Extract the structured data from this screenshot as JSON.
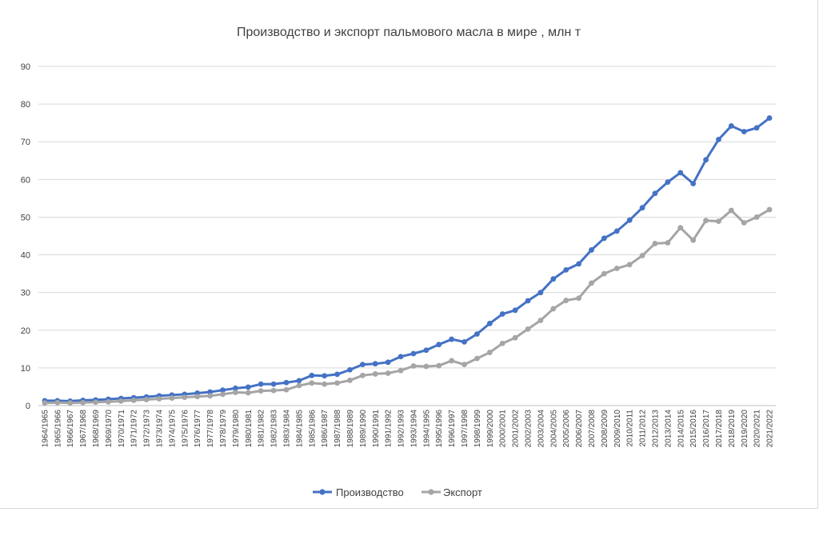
{
  "chart_data": {
    "type": "line",
    "title": "Производство и экспорт пальмового масла в мире , млн т",
    "xlabel": "",
    "ylabel": "",
    "ylim": [
      0,
      90
    ],
    "yticks": [
      0,
      10,
      20,
      30,
      40,
      50,
      60,
      70,
      80,
      90
    ],
    "grid": true,
    "legend": "bottom",
    "categories": [
      "1964/1965",
      "1965/1966",
      "1966/1967",
      "1967/1968",
      "1968/1969",
      "1969/1970",
      "1970/1971",
      "1971/1972",
      "1972/1973",
      "1973/1974",
      "1974/1975",
      "1975/1976",
      "1976/1977",
      "1977/1978",
      "1978/1979",
      "1979/1980",
      "1980/1981",
      "1981/1982",
      "1982/1983",
      "1983/1984",
      "1984/1985",
      "1985/1986",
      "1986/1987",
      "1987/1988",
      "1988/1989",
      "1989/1990",
      "1990/1991",
      "1991/1992",
      "1992/1993",
      "1993/1994",
      "1994/1995",
      "1995/1996",
      "1996/1997",
      "1997/1998",
      "1998/1999",
      "1999/2000",
      "2000/2001",
      "2001/2002",
      "2002/2003",
      "2003/2004",
      "2004/2005",
      "2005/2006",
      "2006/2007",
      "2007/2008",
      "2008/2009",
      "2009/2010",
      "2010/2011",
      "2011/2012",
      "2012/2013",
      "2013/2014",
      "2014/2015",
      "2015/2016",
      "2016/2017",
      "2017/2018",
      "2018/2019",
      "2019/2020",
      "2020/2021",
      "2021/2022"
    ],
    "series": [
      {
        "name": "Производство",
        "color": "#4472c4",
        "values": [
          1.3,
          1.3,
          1.2,
          1.4,
          1.5,
          1.7,
          1.9,
          2.1,
          2.3,
          2.6,
          2.8,
          3.0,
          3.3,
          3.6,
          4.1,
          4.6,
          4.9,
          5.7,
          5.7,
          6.1,
          6.6,
          8.0,
          7.9,
          8.3,
          9.5,
          10.9,
          11.1,
          11.5,
          13.0,
          13.8,
          14.7,
          16.2,
          17.6,
          16.9,
          19.0,
          21.8,
          24.3,
          25.3,
          27.8,
          30.0,
          33.6,
          36.0,
          37.6,
          41.3,
          44.4,
          46.3,
          49.2,
          52.5,
          56.3,
          59.3,
          61.8,
          58.9,
          65.2,
          70.6,
          74.2,
          72.7,
          73.7,
          76.3
        ]
      },
      {
        "name": "Экспорт",
        "color": "#a5a5a5",
        "values": [
          0.7,
          0.8,
          0.7,
          0.8,
          0.9,
          1.0,
          1.2,
          1.4,
          1.6,
          1.8,
          2.0,
          2.2,
          2.4,
          2.6,
          3.0,
          3.5,
          3.4,
          3.9,
          4.0,
          4.2,
          5.3,
          6.0,
          5.7,
          6.0,
          6.7,
          8.0,
          8.4,
          8.6,
          9.3,
          10.5,
          10.4,
          10.6,
          11.9,
          10.9,
          12.5,
          14.1,
          16.5,
          18.0,
          20.3,
          22.6,
          25.7,
          27.9,
          28.5,
          32.5,
          35.0,
          36.4,
          37.4,
          39.8,
          43.0,
          43.2,
          47.2,
          43.9,
          49.1,
          48.9,
          51.8,
          48.5,
          50.0,
          52.0
        ]
      }
    ]
  }
}
